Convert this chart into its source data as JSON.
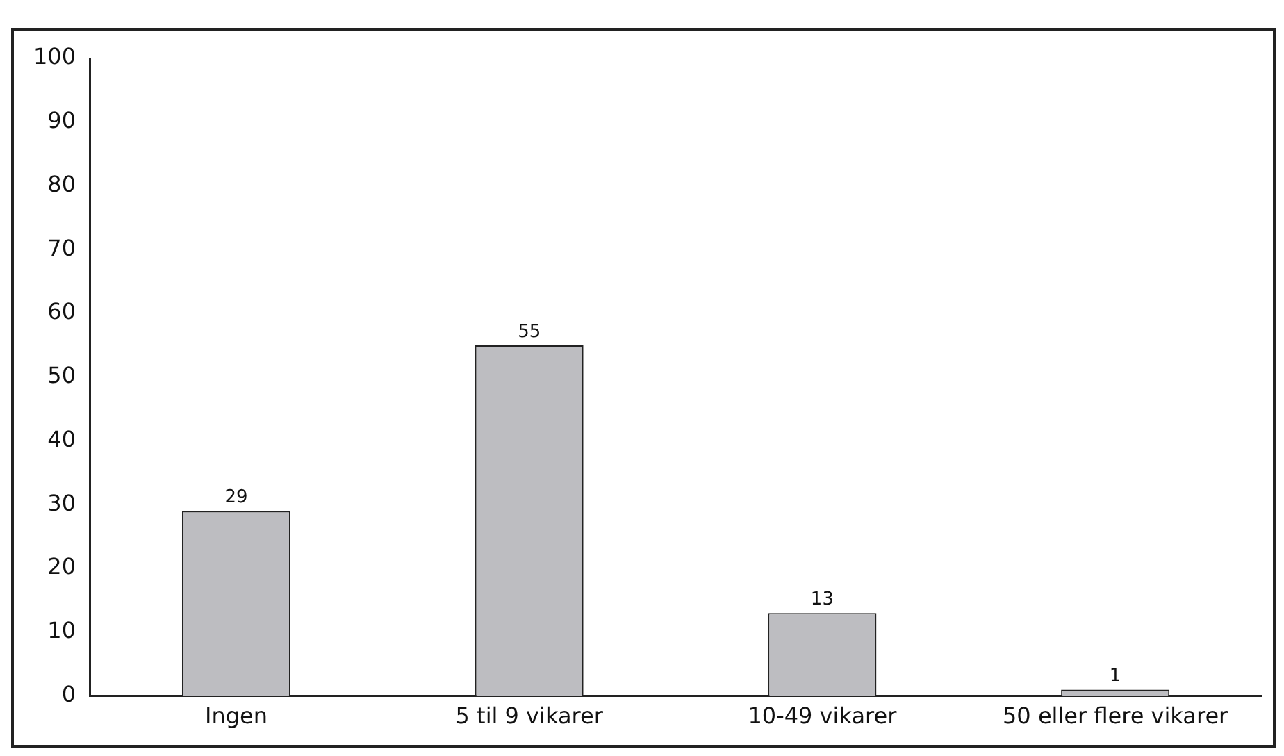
{
  "chart_data": {
    "type": "bar",
    "categories": [
      "Ingen",
      "5 til 9 vikarer",
      "10-49 vikarer",
      "50 eller flere vikarer"
    ],
    "values": [
      29,
      55,
      13,
      1
    ],
    "color": "#bdbdc1",
    "ylim": [
      0,
      100
    ],
    "yticks": [
      0,
      10,
      20,
      30,
      40,
      50,
      60,
      70,
      80,
      90,
      100
    ],
    "grid": false,
    "legend": false,
    "data_labels": true
  }
}
